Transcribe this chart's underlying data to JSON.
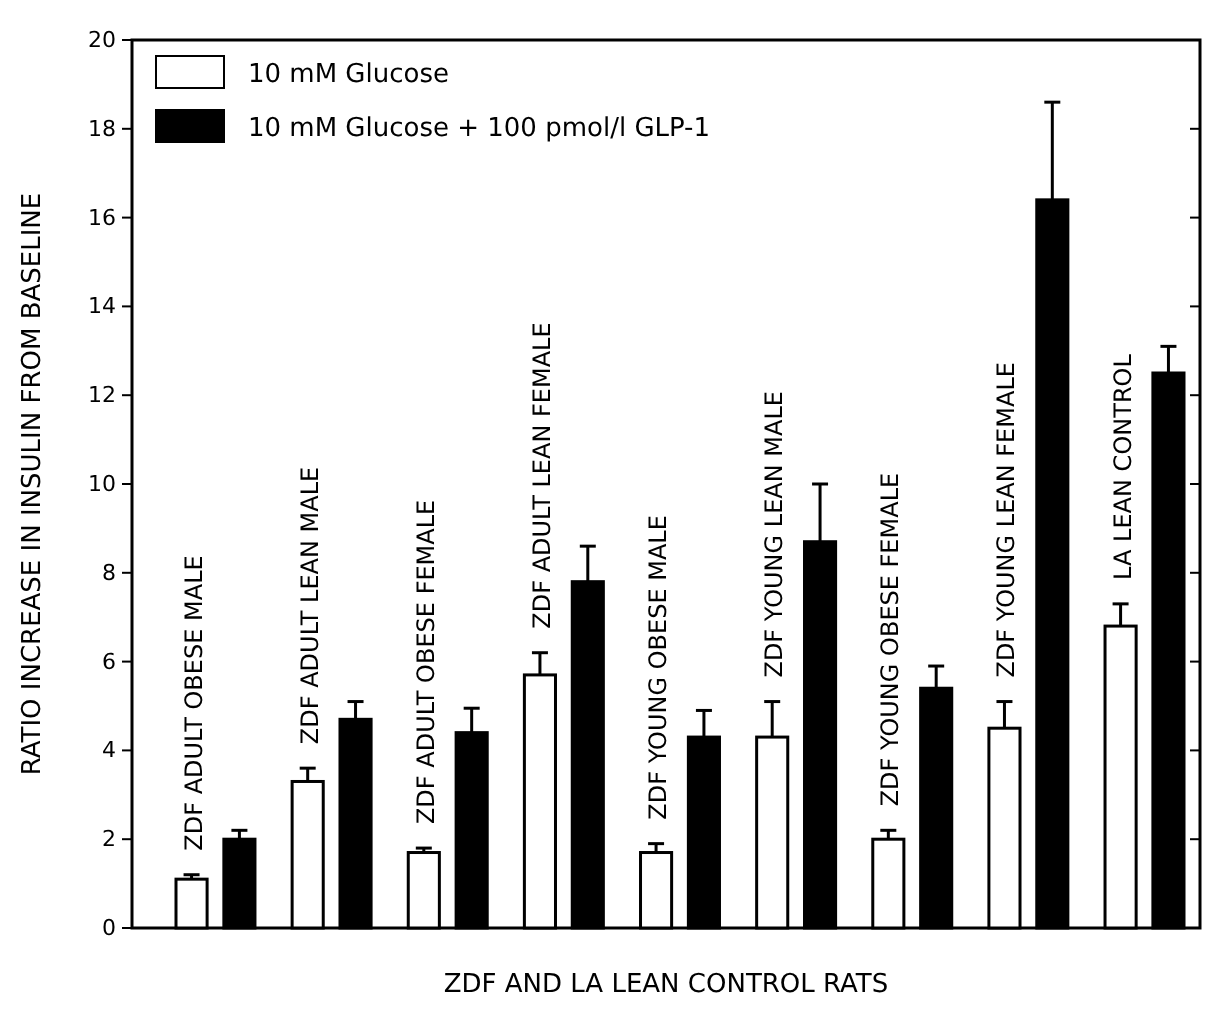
{
  "chart_data": {
    "type": "bar",
    "xlabel": "ZDF AND LA LEAN CONTROL RATS",
    "ylabel": "RATIO INCREASE IN INSULIN FROM BASELINE",
    "categories": [
      "ZDF ADULT OBESE MALE",
      "ZDF ADULT LEAN MALE",
      "ZDF ADULT OBESE FEMALE",
      "ZDF ADULT LEAN FEMALE",
      "ZDF YOUNG OBESE MALE",
      "ZDF YOUNG LEAN MALE",
      "ZDF YOUNG OBESE FEMALE",
      "ZDF YOUNG LEAN FEMALE",
      "LA LEAN CONTROL"
    ],
    "series": [
      {
        "name": "10 mM Glucose",
        "color": "#ffffff",
        "values": [
          1.1,
          3.3,
          1.7,
          5.7,
          1.7,
          4.3,
          2.0,
          4.5,
          6.8
        ],
        "errors": [
          [
            1.1,
            1.2
          ],
          [
            3.3,
            3.6
          ],
          [
            1.7,
            1.8
          ],
          [
            5.7,
            6.2
          ],
          [
            1.7,
            1.9
          ],
          [
            4.3,
            5.1
          ],
          [
            2.0,
            2.2
          ],
          [
            4.5,
            5.1
          ],
          [
            6.8,
            7.3
          ]
        ]
      },
      {
        "name": "10 mM Glucose + 100 pmol/l GLP-1",
        "color": "#000000",
        "values": [
          2.0,
          4.7,
          4.4,
          7.8,
          4.3,
          8.7,
          5.4,
          16.4,
          12.5
        ],
        "errors": [
          [
            2.0,
            2.2
          ],
          [
            4.7,
            5.1
          ],
          [
            4.4,
            4.95
          ],
          [
            7.8,
            8.6
          ],
          [
            4.3,
            4.9
          ],
          [
            8.7,
            10.0
          ],
          [
            5.4,
            5.9
          ],
          [
            16.4,
            18.6
          ],
          [
            12.5,
            13.1
          ]
        ]
      }
    ],
    "ylim": [
      0,
      20
    ],
    "yticks": [
      0,
      2,
      4,
      6,
      8,
      10,
      12,
      14,
      16,
      18,
      20
    ],
    "legend": "top left",
    "tick_labels": "y"
  }
}
